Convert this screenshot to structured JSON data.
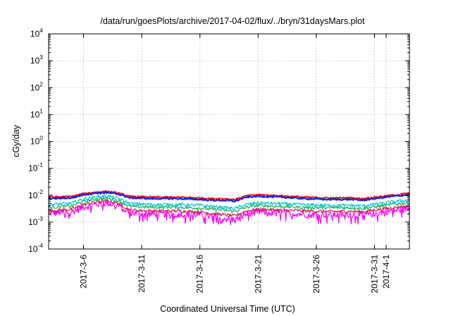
{
  "chart_data": {
    "type": "line",
    "title": "/data/run/goesPlots/archive/2017-04-02/flux/../bryn/31daysMars.plot",
    "xlabel": "Coordinated Universal Time (UTC)",
    "ylabel": "cGy/day",
    "yscale": "log",
    "ylim": [
      0.0001,
      10000
    ],
    "xlim": [
      "2017-03-03",
      "2017-04-03"
    ],
    "grid": true,
    "legend": "none",
    "y_ticks": [
      {
        "base": "10",
        "exp": "4"
      },
      {
        "base": "10",
        "exp": "3"
      },
      {
        "base": "10",
        "exp": "2"
      },
      {
        "base": "10",
        "exp": "1"
      },
      {
        "base": "10",
        "exp": "0"
      },
      {
        "base": "10",
        "exp": "-1"
      },
      {
        "base": "10",
        "exp": "-2"
      },
      {
        "base": "10",
        "exp": "-3"
      },
      {
        "base": "10",
        "exp": "-4"
      }
    ],
    "x_ticks": [
      "2017-3-6",
      "2017-3-11",
      "2017-3-16",
      "2017-3-21",
      "2017-3-26",
      "2017-3-31",
      "2017-4-1"
    ],
    "x_dates": [
      "2017-03-03",
      "2017-03-05",
      "2017-03-06",
      "2017-03-07",
      "2017-03-08",
      "2017-03-09",
      "2017-03-10",
      "2017-03-12",
      "2017-03-14",
      "2017-03-16",
      "2017-03-17",
      "2017-03-18",
      "2017-03-19",
      "2017-03-20",
      "2017-03-21",
      "2017-03-23",
      "2017-03-25",
      "2017-03-27",
      "2017-03-29",
      "2017-03-30",
      "2017-03-31",
      "2017-04-01",
      "2017-04-02",
      "2017-04-03"
    ],
    "series": [
      {
        "color": "#ff0000",
        "values": [
          0.0085,
          0.009,
          0.0115,
          0.013,
          0.014,
          0.012,
          0.009,
          0.0085,
          0.0085,
          0.008,
          0.0075,
          0.0075,
          0.007,
          0.0095,
          0.0105,
          0.0095,
          0.0085,
          0.008,
          0.008,
          0.0075,
          0.0085,
          0.0095,
          0.0105,
          0.012
        ]
      },
      {
        "color": "#1f1fdf",
        "values": [
          0.0075,
          0.008,
          0.0105,
          0.012,
          0.0125,
          0.011,
          0.008,
          0.0075,
          0.0075,
          0.007,
          0.0065,
          0.0065,
          0.006,
          0.0085,
          0.0092,
          0.0085,
          0.0075,
          0.007,
          0.007,
          0.0065,
          0.0075,
          0.0085,
          0.0095,
          0.0105
        ]
      },
      {
        "color": "#00cccc",
        "values": [
          0.0045,
          0.005,
          0.0072,
          0.0085,
          0.0095,
          0.0075,
          0.0048,
          0.0045,
          0.0045,
          0.0042,
          0.0038,
          0.0035,
          0.0032,
          0.0045,
          0.0052,
          0.0048,
          0.0044,
          0.0042,
          0.0042,
          0.004,
          0.0046,
          0.0052,
          0.006,
          0.0065
        ]
      },
      {
        "color": "#20b060",
        "values": [
          0.0035,
          0.004,
          0.0058,
          0.007,
          0.0078,
          0.0062,
          0.0038,
          0.0036,
          0.0036,
          0.0033,
          0.003,
          0.0028,
          0.0025,
          0.0036,
          0.0042,
          0.0038,
          0.0035,
          0.0034,
          0.0034,
          0.0032,
          0.0037,
          0.0042,
          0.0048,
          0.0052
        ]
      },
      {
        "color": "#cc2255",
        "values": [
          0.0026,
          0.003,
          0.0045,
          0.0055,
          0.0062,
          0.005,
          0.0028,
          0.0026,
          0.0026,
          0.0024,
          0.0021,
          0.0019,
          0.0017,
          0.0026,
          0.003,
          0.0028,
          0.0026,
          0.0025,
          0.0025,
          0.0024,
          0.0028,
          0.0032,
          0.0036,
          0.004
        ]
      },
      {
        "color": "#ff00ff",
        "values": [
          0.0021,
          0.0024,
          0.0036,
          0.0045,
          0.0052,
          0.004,
          0.0022,
          0.002,
          0.002,
          0.0019,
          0.0016,
          0.0014,
          0.0012,
          0.002,
          0.0024,
          0.0022,
          0.002,
          0.0019,
          0.0019,
          0.0018,
          0.0021,
          0.0025,
          0.0028,
          0.0032
        ]
      }
    ]
  }
}
